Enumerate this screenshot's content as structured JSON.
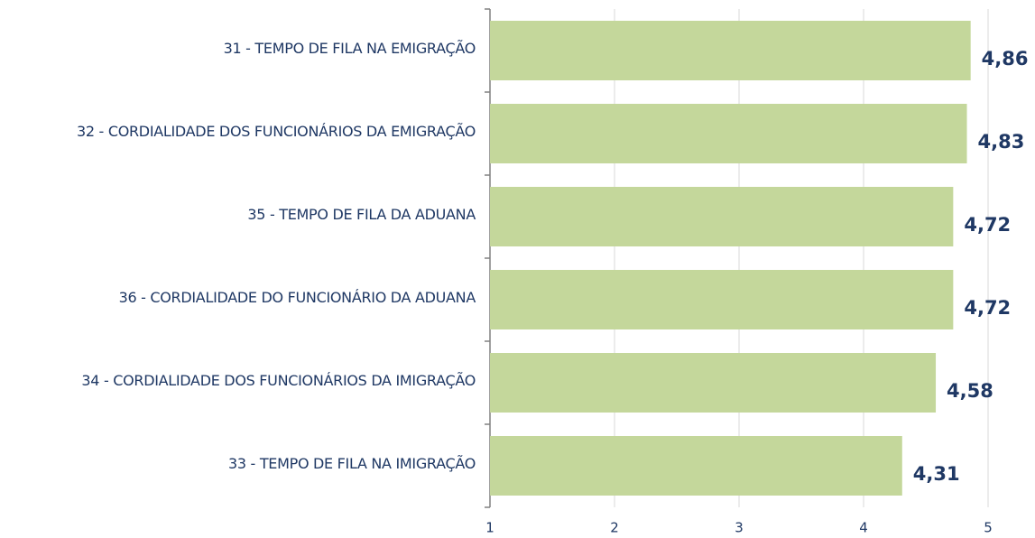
{
  "chart_data": {
    "type": "barh",
    "categories": [
      "31 - TEMPO DE FILA NA EMIGRAÇÃO",
      "32 - CORDIALIDADE DOS FUNCIONÁRIOS DA EMIGRAÇÃO",
      "35 - TEMPO DE FILA DA ADUANA",
      "36 - CORDIALIDADE DO FUNCIONÁRIO DA ADUANA",
      "34 - CORDIALIDADE DOS FUNCIONÁRIOS DA IMIGRAÇÃO",
      "33 - TEMPO DE FILA NA IMIGRAÇÃO"
    ],
    "values": [
      4.86,
      4.83,
      4.72,
      4.72,
      4.58,
      4.31
    ],
    "value_labels": [
      "4,86",
      "4,83",
      "4,72",
      "4,72",
      "4,58",
      "4,31"
    ],
    "color": "#c4d79b",
    "xlim": [
      1,
      5
    ],
    "xticks": [
      1,
      2,
      3,
      4,
      5
    ],
    "grid": true
  }
}
